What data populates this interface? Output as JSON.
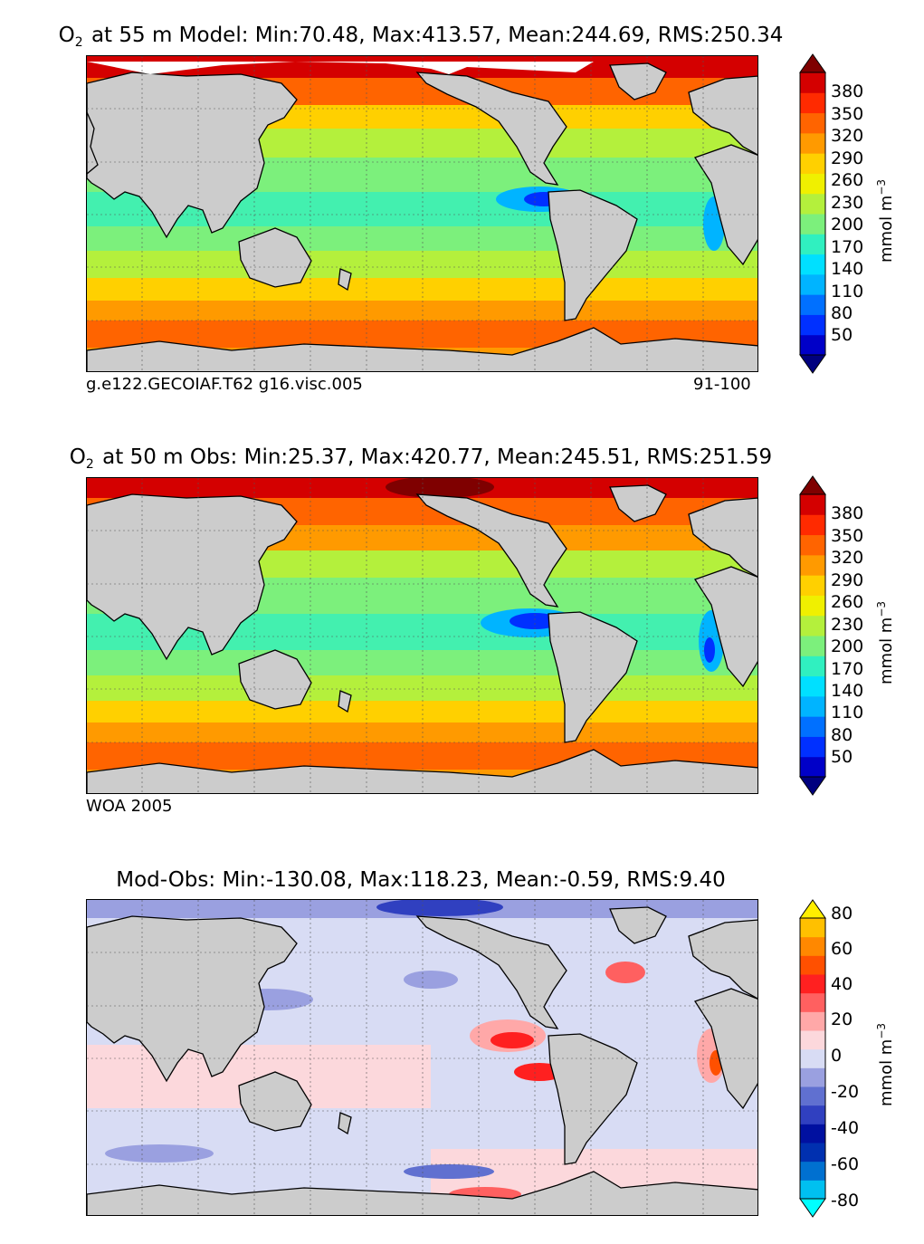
{
  "chart_data": [
    {
      "type": "heatmap",
      "title_species": "O",
      "title_subscript": "2",
      "title": "at 55 m Model: Min:70.48, Max:413.57, Mean:244.69, RMS:250.34",
      "caption_left": "g.e122.GECOIAF.T62 g16.visc.005",
      "caption_right": "91-100",
      "colorbar": {
        "ticks": [
          "380",
          "350",
          "320",
          "290",
          "260",
          "230",
          "200",
          "170",
          "140",
          "110",
          "80",
          "50"
        ],
        "unit_base": "mmol m",
        "unit_exp": "−3",
        "colors": [
          "#00007f",
          "#0000c8",
          "#0030ff",
          "#0070ff",
          "#00b4ff",
          "#00e0ff",
          "#30f0c0",
          "#7cf07c",
          "#b4f03c",
          "#f0f000",
          "#ffd000",
          "#ff9a00",
          "#ff6400",
          "#ff2a00",
          "#d40000",
          "#7f0000"
        ]
      }
    },
    {
      "type": "heatmap",
      "title_species": "O",
      "title_subscript": "2",
      "title": "at 50 m Obs: Min:25.37, Max:420.77, Mean:245.51, RMS:251.59",
      "caption_left": "WOA 2005",
      "colorbar": {
        "ticks": [
          "380",
          "350",
          "320",
          "290",
          "260",
          "230",
          "200",
          "170",
          "140",
          "110",
          "80",
          "50"
        ],
        "unit_base": "mmol m",
        "unit_exp": "−3",
        "colors": [
          "#00007f",
          "#0000c8",
          "#0030ff",
          "#0070ff",
          "#00b4ff",
          "#00e0ff",
          "#30f0c0",
          "#7cf07c",
          "#b4f03c",
          "#f0f000",
          "#ffd000",
          "#ff9a00",
          "#ff6400",
          "#ff2a00",
          "#d40000",
          "#7f0000"
        ]
      }
    },
    {
      "type": "heatmap",
      "title": "Mod-Obs: Min:-130.08, Max:118.23, Mean:-0.59, RMS:9.40",
      "colorbar": {
        "ticks": [
          "80",
          "60",
          "40",
          "20",
          "0",
          "-20",
          "-40",
          "-60",
          "-80"
        ],
        "unit_base": "mmol m",
        "unit_exp": "−3",
        "colors": [
          "#00ffff",
          "#00c0f0",
          "#0070d0",
          "#0030b0",
          "#0010a0",
          "#3040c0",
          "#6070d0",
          "#9aa0e0",
          "#d8dcf4",
          "#fcd8dc",
          "#ffa8a8",
          "#ff6060",
          "#ff2020",
          "#ff5000",
          "#ff8800",
          "#ffc000",
          "#ffee00"
        ]
      }
    }
  ]
}
